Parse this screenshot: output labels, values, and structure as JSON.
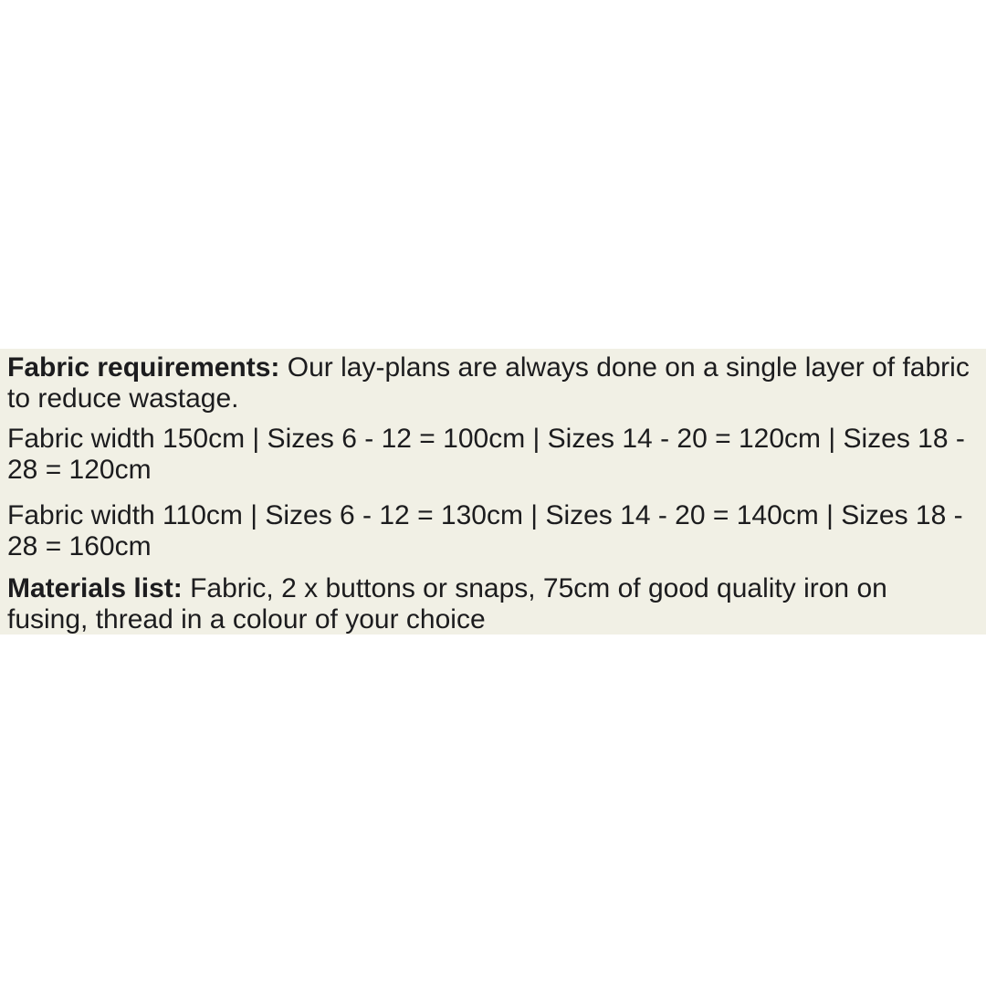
{
  "page": {
    "background_color": "#ffffff"
  },
  "info_panel": {
    "background_color": "#f1f0e5",
    "text_color": "#1c1c1e",
    "paragraphs": [
      {
        "name": "fabric-requirements",
        "lines": [
          {
            "bold": "Fabric requirements:",
            "text": " Our lay-plans are always done on a single layer of fabric"
          },
          {
            "bold": "",
            "text": "to reduce wastage."
          }
        ]
      },
      {
        "name": "fabric-width-150",
        "lines": [
          {
            "bold": "",
            "text": "Fabric width 150cm | Sizes 6 - 12 = 100cm | Sizes 14 - 20 = 120cm | Sizes 18 -"
          },
          {
            "bold": "",
            "text": "28 = 120cm"
          }
        ]
      },
      {
        "name": "fabric-width-110",
        "lines": [
          {
            "bold": "",
            "text": "Fabric width 110cm | Sizes 6 - 12 = 130cm | Sizes 14 - 20 = 140cm | Sizes 18 -"
          },
          {
            "bold": "",
            "text": "28 = 160cm"
          }
        ]
      },
      {
        "name": "materials-list",
        "lines": [
          {
            "bold": "Materials list:",
            "text": " Fabric, 2 x buttons or snaps, 75cm of good quality iron on"
          },
          {
            "bold": "",
            "text": "fusing, thread in a colour of your choice"
          }
        ]
      }
    ]
  }
}
